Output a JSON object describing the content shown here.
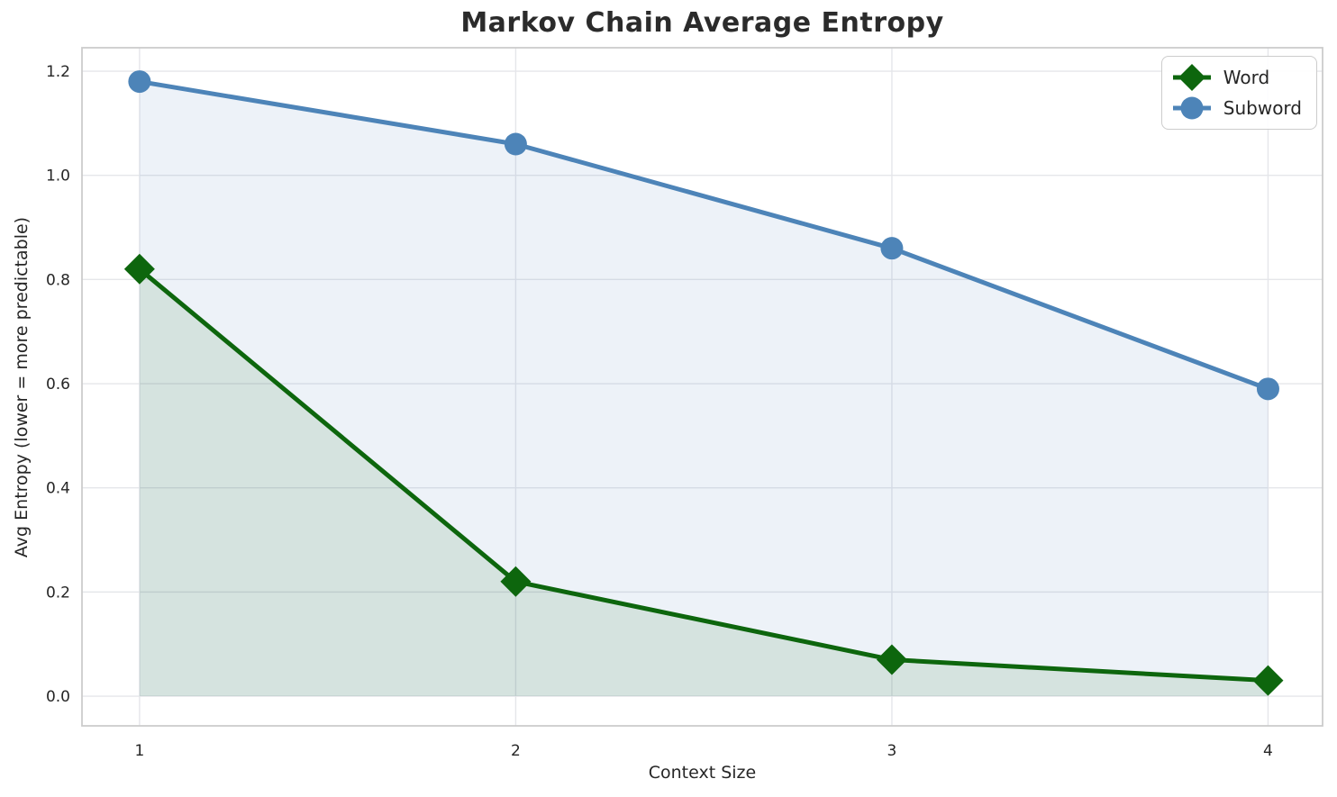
{
  "chart_data": {
    "type": "line",
    "title": "Markov Chain Average Entropy",
    "xlabel": "Context Size",
    "ylabel": "Avg Entropy (lower = more predictable)",
    "x": [
      1,
      2,
      3,
      4
    ],
    "series": [
      {
        "name": "Word",
        "marker": "diamond",
        "color": "#0d660d",
        "fill_opacity": 0.1,
        "values": [
          0.82,
          0.22,
          0.07,
          0.03
        ]
      },
      {
        "name": "Subword",
        "marker": "circle",
        "color": "#4d84b8",
        "fill_opacity": 0.1,
        "values": [
          1.18,
          1.06,
          0.86,
          0.59
        ]
      }
    ],
    "xlim": [
      0.847,
      4.145
    ],
    "ylim": [
      -0.057,
      1.245
    ],
    "xticks": [
      {
        "v": 1,
        "label": "1"
      },
      {
        "v": 2,
        "label": "2"
      },
      {
        "v": 3,
        "label": "3"
      },
      {
        "v": 4,
        "label": "4"
      }
    ],
    "yticks": [
      {
        "v": 0.0,
        "label": "0.0"
      },
      {
        "v": 0.2,
        "label": "0.2"
      },
      {
        "v": 0.4,
        "label": "0.4"
      },
      {
        "v": 0.6,
        "label": "0.6"
      },
      {
        "v": 0.8,
        "label": "0.8"
      },
      {
        "v": 1.0,
        "label": "1.0"
      },
      {
        "v": 1.2,
        "label": "1.2"
      }
    ],
    "grid": true,
    "legend_position": "upper right",
    "grid_color": "#e5e6ea",
    "spine_color": "#cccccc",
    "text_color": "#262626"
  }
}
